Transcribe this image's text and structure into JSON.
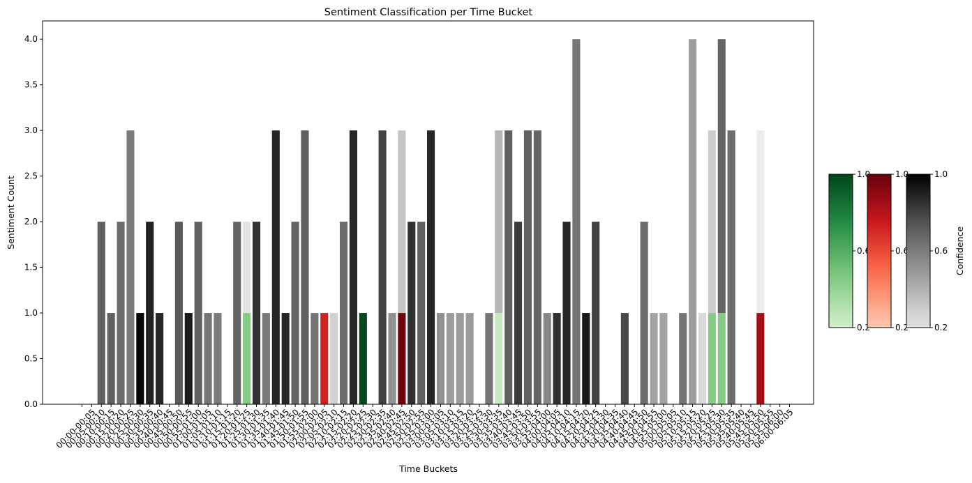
{
  "chart_data": {
    "type": "bar",
    "stacked": true,
    "title": "Sentiment Classification per Time Bucket",
    "xlabel": "Time Buckets",
    "ylabel": "Sentiment Count",
    "ylim": [
      0,
      4.2
    ],
    "yticks": [
      "0.0",
      "0.5",
      "1.0",
      "1.5",
      "2.0",
      "2.5",
      "3.0",
      "3.5",
      "4.0"
    ],
    "grid": false,
    "categories": [
      "",
      "00:00-00:05",
      "00:05-00:10",
      "00:10-00:15",
      "00:15-00:20",
      "00:20-00:25",
      "00:25-00:30",
      "00:30-00:35",
      "00:35-00:40",
      "00:40-00:45",
      "00:45-00:50",
      "00:50-00:55",
      "00:55-01:00",
      "01:00-01:05",
      "01:05-01:10",
      "01:10-01:15",
      "01:15-01:20",
      "01:20-01:25",
      "01:25-01:30",
      "01:30-01:35",
      "01:35-01:40",
      "01:40-01:45",
      "01:45-01:50",
      "01:50-01:55",
      "01:55-02:00",
      "02:00-02:05",
      "02:05-02:10",
      "02:10-02:15",
      "02:15-02:20",
      "02:20-02:25",
      "02:25-02:30",
      "02:30-02:35",
      "02:35-02:40",
      "02:40-02:45",
      "02:45-02:50",
      "02:50-02:55",
      "02:55-03:00",
      "03:00-03:05",
      "03:05-03:10",
      "03:10-03:15",
      "03:15-03:20",
      "03:20-03:25",
      "03:25-03:30",
      "03:30-03:35",
      "03:35-03:40",
      "03:40-03:45",
      "03:45-03:50",
      "03:50-03:55",
      "03:55-04:00",
      "04:00-04:05",
      "04:05-04:10",
      "04:10-04:15",
      "04:15-04:20",
      "04:20-04:25",
      "04:25-04:30",
      "04:30-04:35",
      "04:35-04:40",
      "04:40-04:45",
      "04:45-04:50",
      "04:50-04:55",
      "04:55-05:00",
      "05:00-05:05",
      "05:05-05:10",
      "05:10-05:15",
      "05:15-05:20",
      "05:20-05:25",
      "05:25-05:30",
      "05:30-05:35",
      "05:35-05:40",
      "05:40-05:45",
      "05:45-05:50",
      "05:50-05:55",
      "05:55-06:00",
      "06:00-06:05"
    ],
    "series": [
      {
        "name": "positive",
        "values": [
          0,
          0,
          0,
          0,
          0,
          0,
          0,
          0,
          0,
          0,
          0,
          0,
          0,
          0,
          0,
          0,
          0,
          1,
          0,
          0,
          0,
          0,
          0,
          0,
          0,
          0,
          0,
          0,
          0,
          1,
          0,
          0,
          0,
          0,
          0,
          0,
          0,
          0,
          0,
          0,
          0,
          0,
          0,
          1,
          0,
          0,
          0,
          0,
          0,
          0,
          0,
          0,
          0,
          0,
          0,
          0,
          0,
          0,
          0,
          0,
          0,
          0,
          0,
          0,
          0,
          1,
          1,
          0,
          0,
          0,
          0,
          0,
          0,
          0
        ],
        "confidence": [
          0,
          0,
          0,
          0,
          0,
          0,
          0,
          0,
          0,
          0,
          0,
          0,
          0,
          0,
          0,
          0,
          0,
          0.45,
          0,
          0,
          0,
          0,
          0,
          0,
          0,
          0,
          0,
          0,
          0,
          0.98,
          0,
          0,
          0,
          0,
          0,
          0,
          0,
          0,
          0,
          0,
          0,
          0,
          0,
          0.25,
          0,
          0,
          0,
          0,
          0,
          0,
          0,
          0,
          0,
          0,
          0,
          0,
          0,
          0,
          0,
          0,
          0,
          0,
          0,
          0,
          0,
          0.45,
          0.45,
          0,
          0,
          0,
          0,
          0,
          0,
          0
        ]
      },
      {
        "name": "negative",
        "values": [
          0,
          0,
          0,
          0,
          0,
          0,
          0,
          0,
          0,
          0,
          0,
          0,
          0,
          0,
          0,
          0,
          0,
          0,
          0,
          0,
          0,
          0,
          0,
          0,
          0,
          1,
          0,
          0,
          0,
          0,
          0,
          0,
          0,
          1,
          0,
          0,
          0,
          0,
          0,
          0,
          0,
          0,
          0,
          0,
          0,
          0,
          0,
          0,
          0,
          0,
          0,
          0,
          0,
          0,
          0,
          0,
          0,
          0,
          0,
          0,
          0,
          0,
          0,
          0,
          0,
          0,
          0,
          0,
          0,
          0,
          1,
          0,
          0,
          0
        ],
        "confidence": [
          0,
          0,
          0,
          0,
          0,
          0,
          0,
          0,
          0,
          0,
          0,
          0,
          0,
          0,
          0,
          0,
          0,
          0,
          0,
          0,
          0,
          0,
          0,
          0,
          0,
          0.72,
          0,
          0,
          0,
          0,
          0,
          0,
          0,
          0.98,
          0,
          0,
          0,
          0,
          0,
          0,
          0,
          0,
          0,
          0,
          0,
          0,
          0,
          0,
          0,
          0,
          0,
          0,
          0,
          0,
          0,
          0,
          0,
          0,
          0,
          0,
          0,
          0,
          0,
          0,
          0,
          0,
          0,
          0,
          0,
          0,
          0.85,
          0,
          0,
          0
        ]
      },
      {
        "name": "neutral",
        "values": [
          0,
          0,
          2,
          1,
          2,
          3,
          1,
          2,
          1,
          0,
          2,
          1,
          2,
          1,
          1,
          0,
          2,
          1,
          2,
          1,
          3,
          1,
          2,
          3,
          1,
          0,
          1,
          2,
          3,
          0,
          0,
          3,
          1,
          2,
          2,
          2,
          3,
          1,
          1,
          1,
          1,
          0,
          1,
          2,
          3,
          2,
          3,
          3,
          1,
          1,
          2,
          4,
          1,
          2,
          0,
          0,
          1,
          0,
          2,
          1,
          1,
          0,
          1,
          4,
          1,
          2,
          3,
          3,
          0,
          0,
          2,
          0,
          0,
          0
        ],
        "confidence": [
          0,
          0,
          0.7,
          0.7,
          0.65,
          0.6,
          0.98,
          0.9,
          0.88,
          0,
          0.72,
          0.92,
          0.7,
          0.62,
          0.6,
          0,
          0.68,
          0.18,
          0.85,
          0.6,
          0.88,
          0.88,
          0.68,
          0.7,
          0.62,
          0,
          0.28,
          0.65,
          0.88,
          0,
          0,
          0.8,
          0.52,
          0.32,
          0.85,
          0.7,
          0.88,
          0.52,
          0.48,
          0.48,
          0.48,
          0,
          0.62,
          0.38,
          0.7,
          0.82,
          0.7,
          0.68,
          0.55,
          0.85,
          0.88,
          0.62,
          0.92,
          0.8,
          0,
          0,
          0.78,
          0,
          0.65,
          0.45,
          0.45,
          0,
          0.62,
          0.47,
          0.25,
          0.3,
          0.68,
          0.65,
          0,
          0,
          0.12,
          0.55,
          0,
          0
        ]
      }
    ],
    "colorbars": [
      {
        "cmap": "greens",
        "ticks": [
          "0.2",
          "0.6",
          "1.0"
        ],
        "label": ""
      },
      {
        "cmap": "reds",
        "ticks": [
          "0.2",
          "0.6",
          "1.0"
        ],
        "label": ""
      },
      {
        "cmap": "greys",
        "ticks": [
          "0.2",
          "0.6",
          "1.0"
        ],
        "label": "Confidence"
      }
    ]
  }
}
